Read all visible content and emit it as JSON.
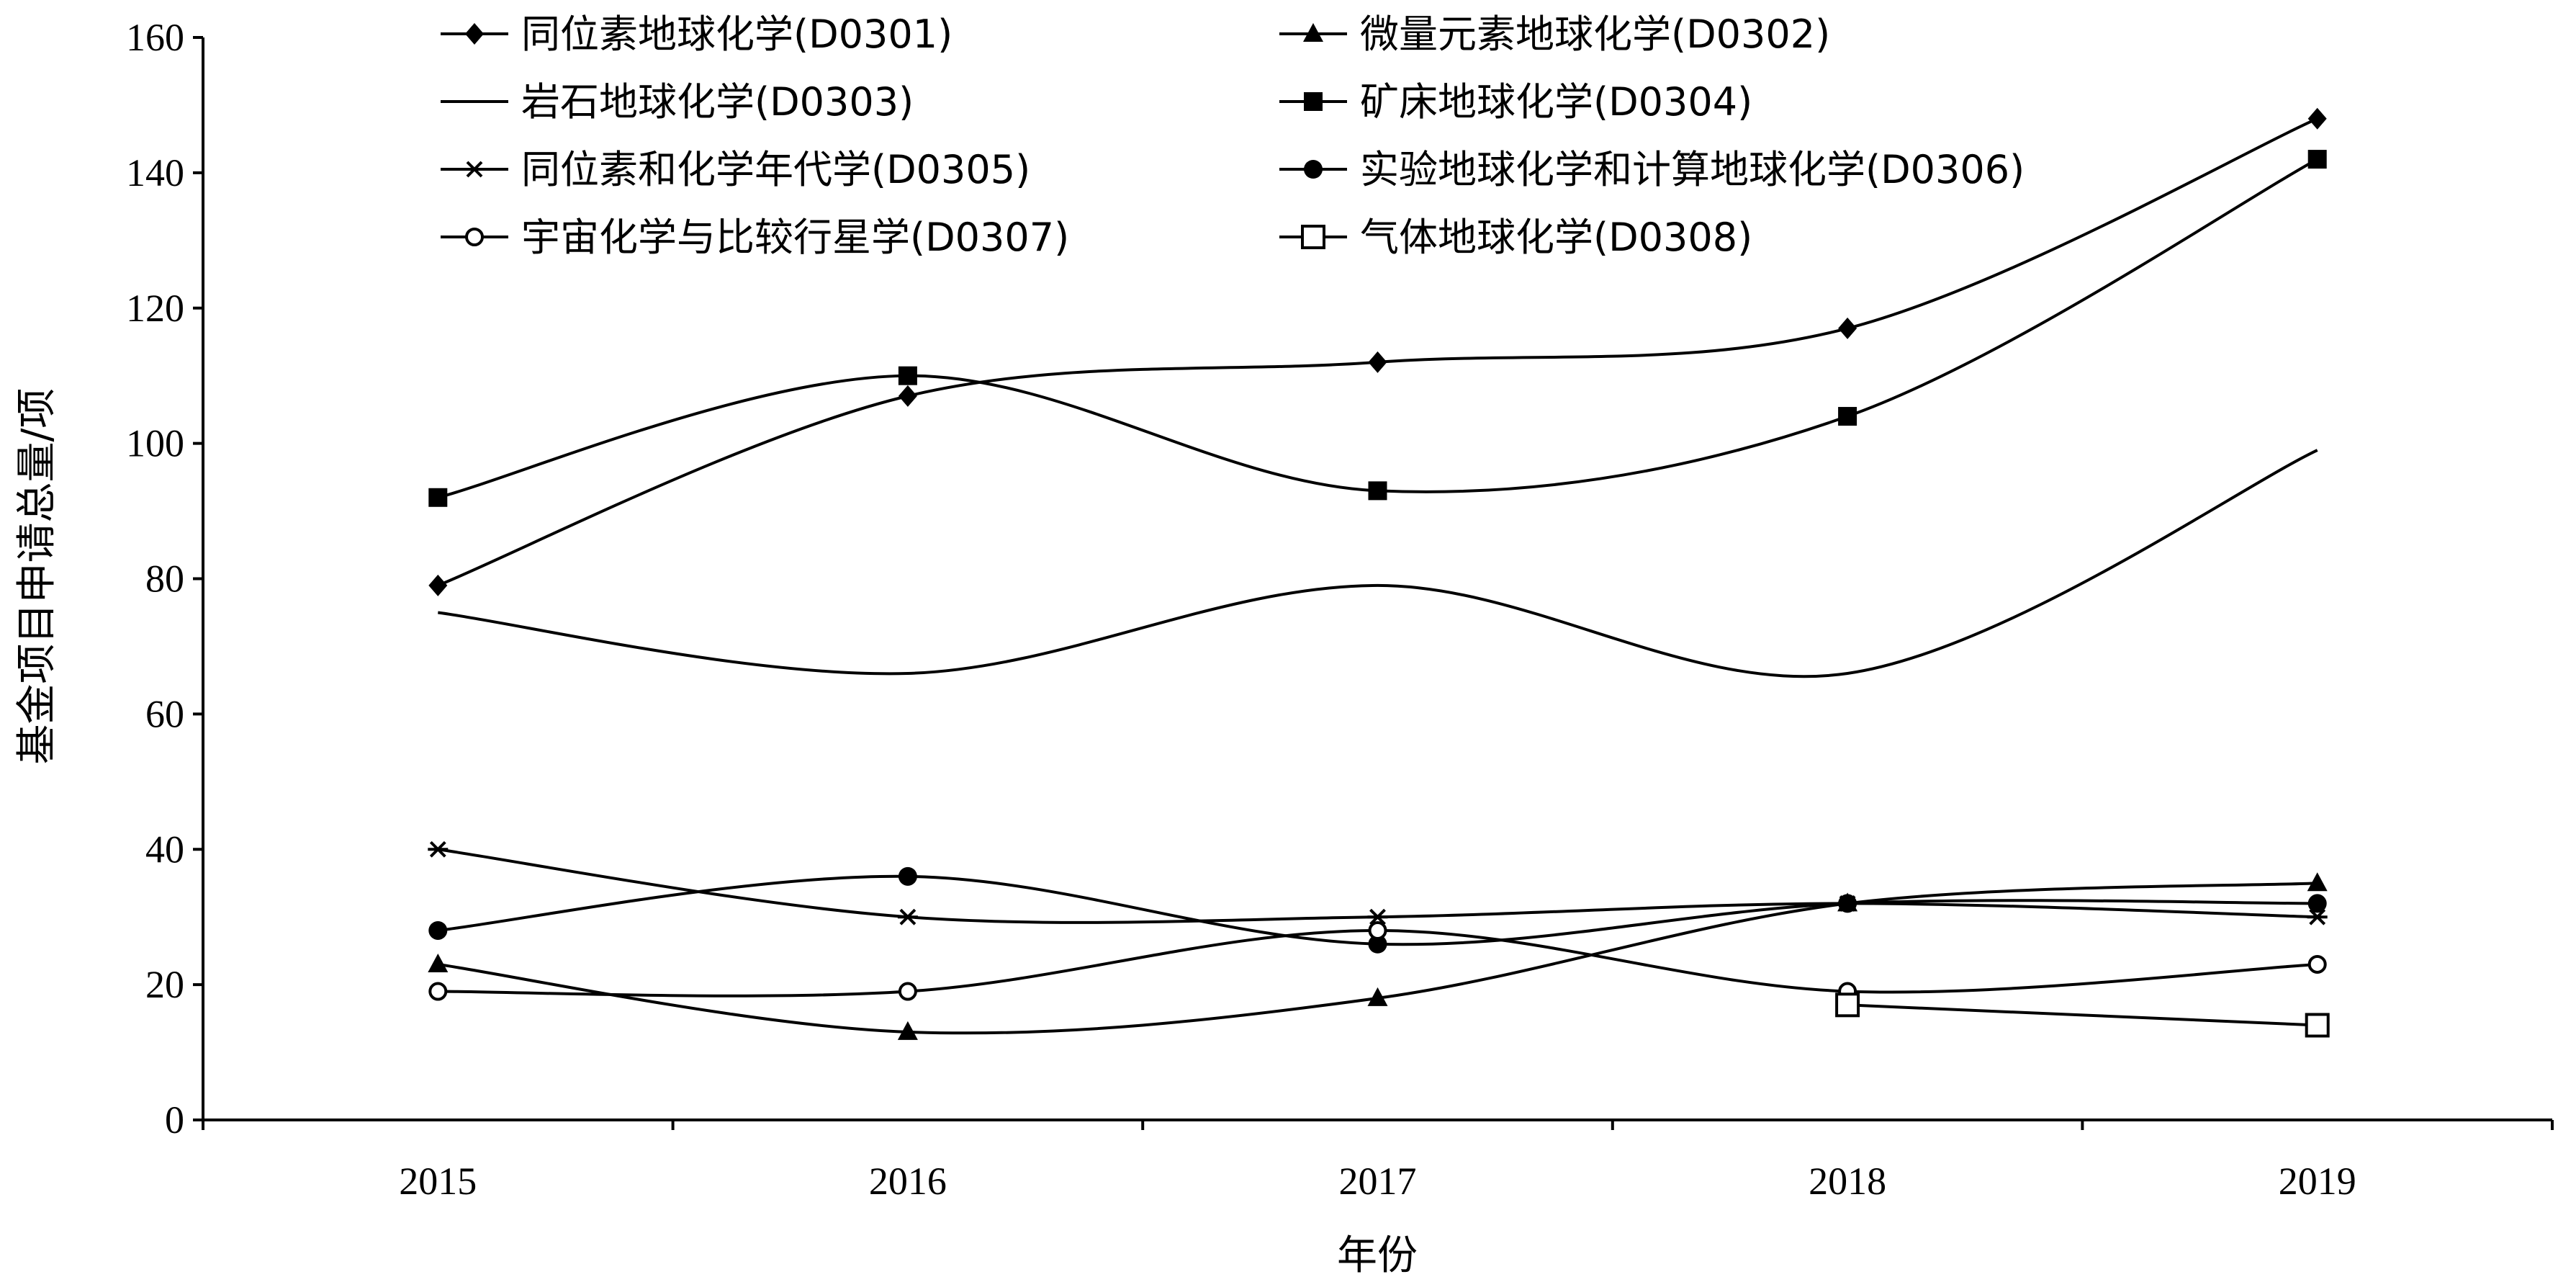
{
  "chart_data": {
    "type": "line",
    "xlabel": "年份",
    "ylabel": "基金项目申请总量/项",
    "categories": [
      "2015",
      "2016",
      "2017",
      "2018",
      "2019"
    ],
    "ylim": [
      0,
      160
    ],
    "yticks": [
      "0",
      "20",
      "40",
      "60",
      "80",
      "100",
      "120",
      "140",
      "160"
    ],
    "grid": false,
    "smooth": true,
    "legend_position": "top",
    "series": [
      {
        "name": "同位素地球化学(D0301)",
        "marker": "diamond",
        "values": [
          79,
          107,
          112,
          117,
          148
        ]
      },
      {
        "name": "微量元素地球化学(D0302)",
        "marker": "triangle",
        "values": [
          23,
          13,
          18,
          32,
          35
        ]
      },
      {
        "name": "岩石地球化学(D0303)",
        "marker": "none",
        "values": [
          75,
          66,
          79,
          66,
          99
        ]
      },
      {
        "name": "矿床地球化学(D0304)",
        "marker": "square",
        "values": [
          92,
          110,
          93,
          104,
          142
        ]
      },
      {
        "name": "同位素和化学年代学(D0305)",
        "marker": "asterisk",
        "values": [
          40,
          30,
          30,
          32,
          30
        ]
      },
      {
        "name": "实验地球化学和计算地球化学(D0306)",
        "marker": "circle",
        "values": [
          28,
          36,
          26,
          32,
          32
        ]
      },
      {
        "name": "宇宙化学与比较行星学(D0307)",
        "marker": "open-circle",
        "values": [
          19,
          19,
          28,
          19,
          23
        ]
      },
      {
        "name": "气体地球化学(D0308)",
        "marker": "open-square",
        "values": [
          null,
          null,
          null,
          17,
          14
        ]
      }
    ]
  }
}
